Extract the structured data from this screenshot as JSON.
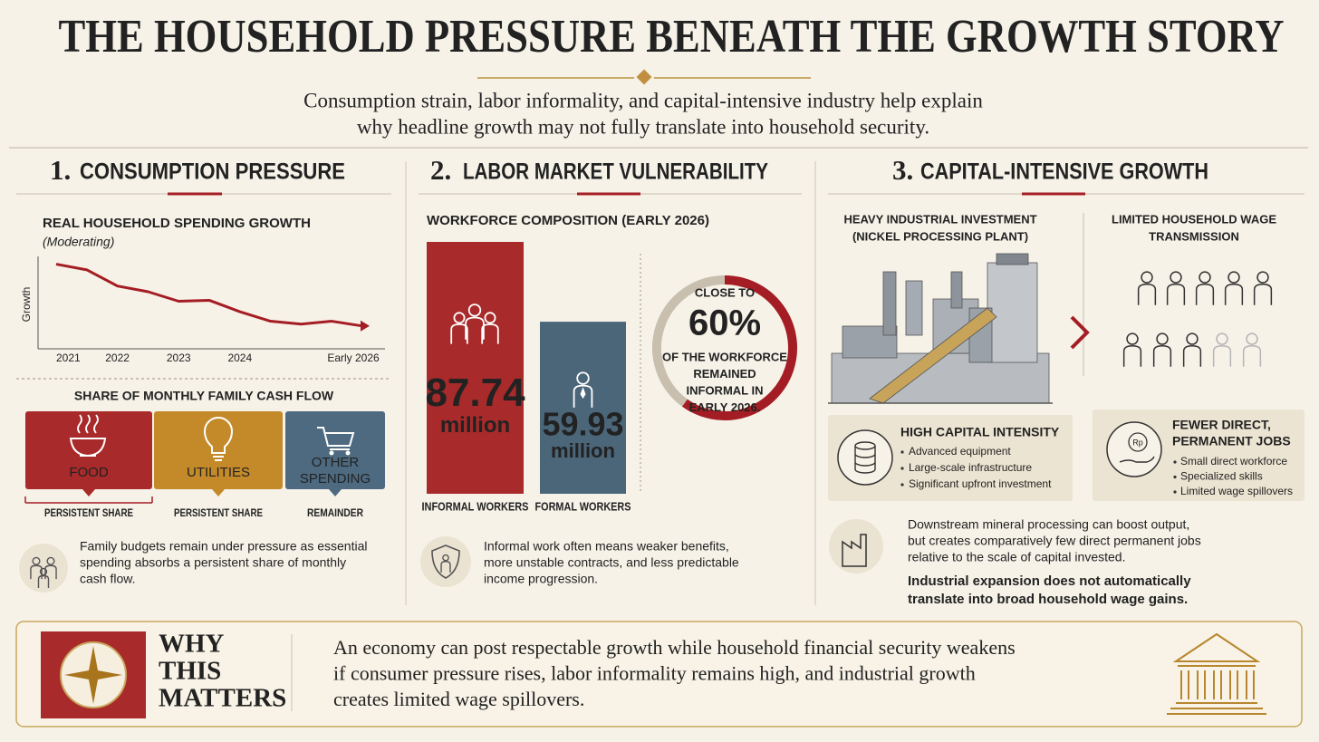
{
  "header": {
    "title": "THE HOUSEHOLD PRESSURE BENEATH THE GROWTH STORY",
    "subtitle_lines": [
      "Consumption strain, labor informality, and capital-intensive industry help explain",
      "why headline growth may not fully translate into household security."
    ]
  },
  "consumption": {
    "number": "1.",
    "heading": "CONSUMPTION PRESSURE",
    "chart": {
      "type": "line",
      "title": "REAL HOUSEHOLD SPENDING GROWTH",
      "subtitle": "(Moderating)",
      "y_label": "Growth",
      "categories": [
        "2021",
        null,
        "2022",
        null,
        "2023",
        null,
        "2024",
        null,
        null,
        null,
        "Early 2026"
      ],
      "values": [
        8.9,
        8.3,
        6.6,
        6.0,
        5.0,
        5.1,
        3.9,
        2.9,
        2.6,
        2.9,
        2.4
      ],
      "ylim": [
        0,
        10
      ],
      "color": "#a51d24"
    },
    "cash_flow": {
      "title": "SHARE OF MONTHLY FAMILY CASH FLOW",
      "items": [
        {
          "name_lines": [
            "FOOD"
          ],
          "note": "PERSISTENT SHARE",
          "color": "#a82a2a",
          "note_color": "#a51d24"
        },
        {
          "name_lines": [
            "UTILITIES"
          ],
          "note": "PERSISTENT SHARE",
          "color": "#c48a2a",
          "note_color": "#a8741c"
        },
        {
          "name_lines": [
            "OTHER",
            "SPENDING"
          ],
          "note": "REMAINDER",
          "color": "#4d6a80",
          "note_color": "#222222"
        }
      ]
    },
    "note_lines": [
      "Family budgets remain under pressure as essential",
      "spending absorbs a persistent share of monthly",
      "cash flow."
    ]
  },
  "labor": {
    "number": "2.",
    "heading": "LABOR MARKET VULNERABILITY",
    "chart": {
      "type": "bar",
      "title": "WORKFORCE COMPOSITION (EARLY 2026)",
      "categories": [
        "INFORMAL WORKERS",
        "FORMAL WORKERS"
      ],
      "values": [
        87.74,
        59.93
      ],
      "unit": "million",
      "colors": [
        "#a82a2a",
        "#4b6679"
      ]
    },
    "donut": {
      "lines_top": [
        "CLOSE TO"
      ],
      "value": 60,
      "value_label": "60%",
      "lines_bottom": [
        "OF THE WORKFORCE",
        "REMAINED",
        "INFORMAL IN",
        "EARLY 2026."
      ],
      "color": "#a51d24",
      "rest_color": "#c8bfae"
    },
    "note_lines": [
      "Informal work often means weaker benefits,",
      "more unstable contracts, and less predictable",
      "income progression."
    ]
  },
  "capital": {
    "number": "3.",
    "heading": "CAPITAL-INTENSIVE GROWTH",
    "left_title_lines": [
      "HEAVY INDUSTRIAL INVESTMENT",
      "(NICKEL PROCESSING PLANT)"
    ],
    "right_title_lines": [
      "LIMITED HOUSEHOLD WAGE",
      "TRANSMISSION"
    ],
    "left_box": {
      "title_lines": [
        "HIGH CAPITAL INTENSITY"
      ],
      "bullets": [
        "Advanced equipment",
        "Large-scale infrastructure",
        "Significant upfront investment"
      ]
    },
    "right_box": {
      "title_lines": [
        "FEWER DIRECT,",
        "PERMANENT JOBS"
      ],
      "icon_label": "Rp",
      "bullets": [
        "Small direct workforce",
        "Specialized skills",
        "Limited wage spillovers"
      ]
    },
    "note_lines": [
      "Downstream mineral processing can boost output,",
      "but creates comparatively few direct permanent jobs",
      "relative to the scale of capital invested."
    ],
    "emphasis_lines": [
      "Industrial expansion does not automatically",
      "translate into broad household wage gains."
    ]
  },
  "why": {
    "title_lines": [
      "WHY",
      "THIS",
      "MATTERS"
    ],
    "text_lines": [
      "An economy can post respectable growth while household financial security weakens",
      "if consumer pressure rises, labor informality remains high, and industrial growth",
      "creates limited wage spillovers."
    ]
  }
}
